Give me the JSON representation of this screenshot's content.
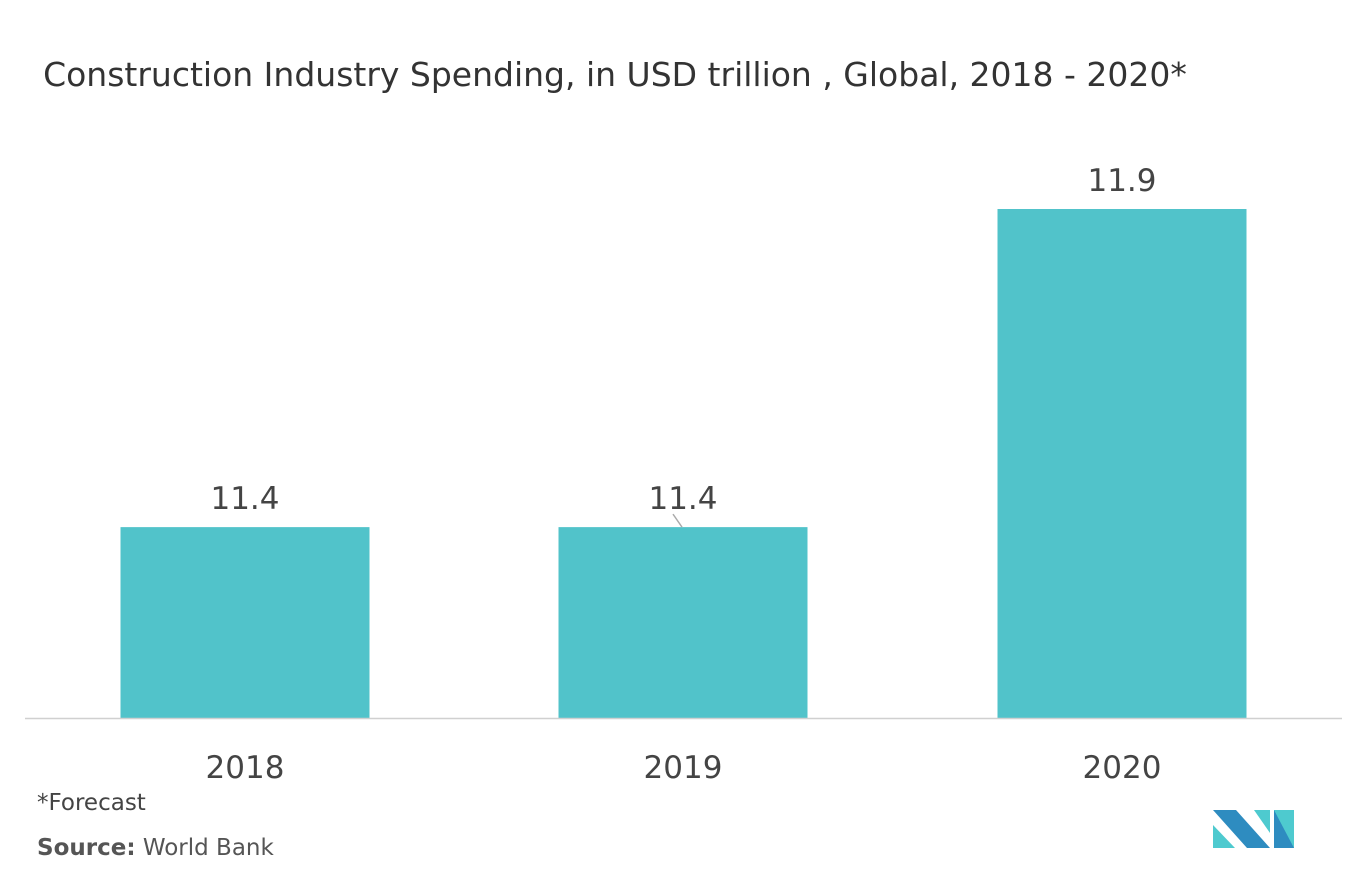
{
  "chart_data": {
    "type": "bar",
    "title": "Construction Industry Spending, in USD trillion , Global, 2018 - 2020*",
    "categories": [
      "2018",
      "2019",
      "2020"
    ],
    "values": [
      11.4,
      11.4,
      11.9
    ],
    "data_labels": [
      "11.4",
      "11.4",
      "11.9"
    ],
    "xlabel": "",
    "ylabel": "",
    "ylim": [
      11.1,
      11.9
    ],
    "grid": false,
    "y_axis_visible": false,
    "bar_color": "#51C3CA",
    "axis_color": "#D0D0D0"
  },
  "footnote": "*Forecast",
  "source": {
    "label": "Source:",
    "value": "World Bank"
  },
  "logo": {
    "colors": [
      "#2E8CC0",
      "#4ECACF"
    ]
  }
}
